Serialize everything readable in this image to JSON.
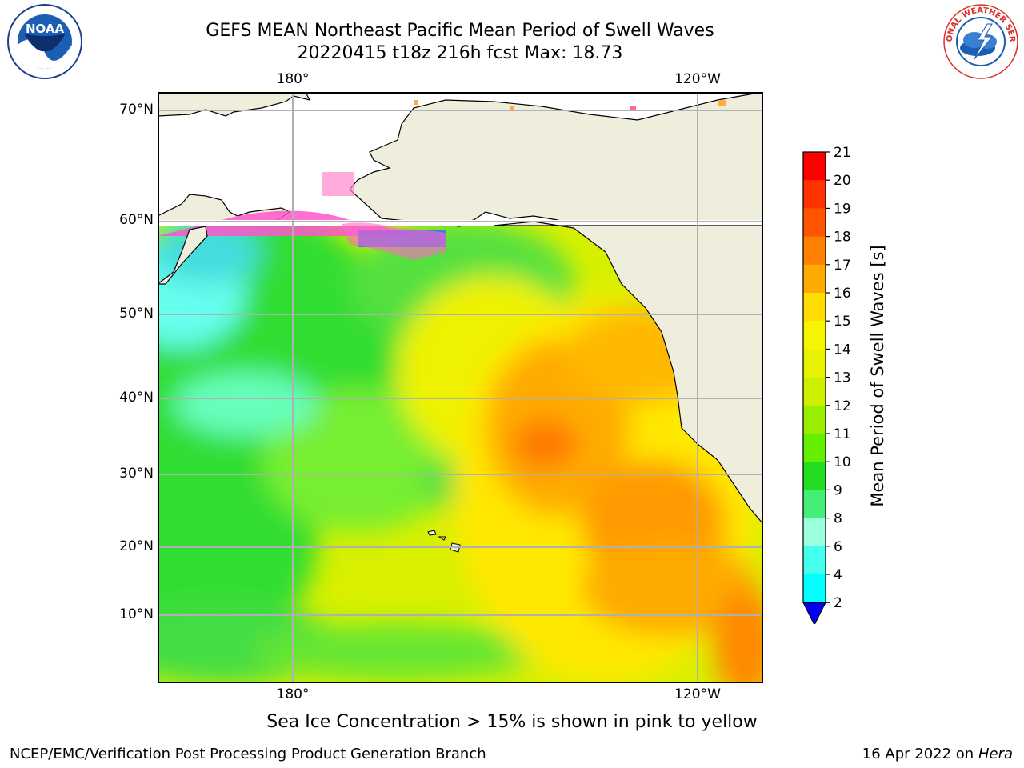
{
  "title": {
    "line1": "GEFS MEAN Northeast Pacific Mean Period of Swell Waves",
    "line2": "20220415 t18z 216h fcst   Max: 18.73"
  },
  "lon_labels": [
    "180°",
    "120°W"
  ],
  "lat_labels": [
    "70°N",
    "60°N",
    "50°N",
    "40°N",
    "30°N",
    "20°N",
    "10°N"
  ],
  "colorbar": {
    "label": "Mean Period of Swell Waves [s]",
    "ticks": [
      "21",
      "20",
      "19",
      "18",
      "17",
      "16",
      "15",
      "14",
      "13",
      "12",
      "11",
      "10",
      "9",
      "8",
      "6",
      "4",
      "2"
    ],
    "colors": [
      "#ff0000",
      "#ff3300",
      "#ff5500",
      "#ff8000",
      "#ffaa00",
      "#ffdd00",
      "#f5f500",
      "#e6f200",
      "#ccf000",
      "#99ee00",
      "#66ee00",
      "#22dd22",
      "#44ee77",
      "#99ffdd",
      "#44ffee",
      "#00ffff",
      "#00ccff",
      "#0066ff",
      "#0000ee"
    ]
  },
  "caption": "Sea Ice Concentration > 15% is shown in pink to yellow",
  "footer": {
    "org": "NCEP/EMC/Verification Post Processing Product Generation Branch",
    "date": "16 Apr 2022 on",
    "machine": "Hera"
  },
  "logos": {
    "noaa": "NOAA",
    "nws": "NATIONAL WEATHER SERVICE"
  },
  "colors": {
    "land": "#efeedc",
    "grid": "#b0b0b0"
  }
}
